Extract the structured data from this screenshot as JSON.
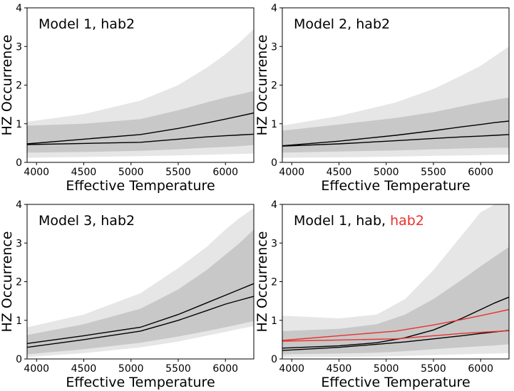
{
  "colors": {
    "light_band": "#e6e6e6",
    "dark_band": "#c8c8c8",
    "line_black": "#000000",
    "line_red": "#e8322d"
  },
  "chart_data": [
    {
      "type": "area",
      "panel": "top-left",
      "title": "Model 1, hab2",
      "title_parts": [
        {
          "text": "Model 1, hab2",
          "color": "#000000"
        }
      ],
      "xlabel": "Effective Temperature",
      "ylabel": "HZ Occurrence",
      "xlim": [
        3900,
        6300
      ],
      "ylim": [
        0,
        4
      ],
      "xticks": [
        4000,
        4500,
        5000,
        5500,
        6000
      ],
      "yticks": [
        0,
        1,
        2,
        3,
        4
      ],
      "bands": [
        {
          "name": "outer",
          "color": "#e6e6e6",
          "x": [
            3900,
            4500,
            5100,
            5500,
            5800,
            6000,
            6150,
            6300
          ],
          "upper": [
            1.05,
            1.25,
            1.6,
            2.0,
            2.45,
            2.8,
            3.1,
            3.45
          ],
          "lower": [
            0.12,
            0.14,
            0.16,
            0.18,
            0.2,
            0.21,
            0.22,
            0.23
          ]
        },
        {
          "name": "inner",
          "color": "#c8c8c8",
          "x": [
            3900,
            4500,
            5100,
            5500,
            5800,
            6000,
            6150,
            6300
          ],
          "upper": [
            0.95,
            1.0,
            1.12,
            1.35,
            1.55,
            1.68,
            1.76,
            1.85
          ],
          "lower": [
            0.25,
            0.27,
            0.3,
            0.34,
            0.38,
            0.4,
            0.42,
            0.45
          ]
        }
      ],
      "series": [
        {
          "name": "model",
          "color": "#000000",
          "x": [
            3900,
            4500,
            5100,
            5500,
            5800,
            6000,
            6150,
            6300
          ],
          "values": [
            0.48,
            0.6,
            0.72,
            0.88,
            1.02,
            1.12,
            1.2,
            1.28
          ]
        },
        {
          "name": "model-2",
          "color": "#000000",
          "x": [
            3900,
            4500,
            5100,
            5500,
            5800,
            6000,
            6150,
            6300
          ],
          "values": [
            0.46,
            0.49,
            0.52,
            0.6,
            0.66,
            0.69,
            0.71,
            0.73
          ]
        }
      ]
    },
    {
      "type": "area",
      "panel": "top-right",
      "title": "Model 2, hab2",
      "title_parts": [
        {
          "text": "Model 2, hab2",
          "color": "#000000"
        }
      ],
      "xlabel": "Effective Temperature",
      "ylabel": "HZ Occurrence",
      "xlim": [
        3900,
        6300
      ],
      "ylim": [
        0,
        4
      ],
      "xticks": [
        4000,
        4500,
        5000,
        5500,
        6000
      ],
      "yticks": [
        0,
        1,
        2,
        3,
        4
      ],
      "bands": [
        {
          "name": "outer",
          "color": "#e6e6e6",
          "x": [
            3900,
            4500,
            5100,
            5500,
            5800,
            6000,
            6150,
            6300
          ],
          "upper": [
            0.95,
            1.2,
            1.55,
            1.9,
            2.25,
            2.5,
            2.75,
            3.0
          ],
          "lower": [
            0.12,
            0.13,
            0.15,
            0.17,
            0.18,
            0.19,
            0.2,
            0.2
          ]
        },
        {
          "name": "inner",
          "color": "#c8c8c8",
          "x": [
            3900,
            4500,
            5100,
            5500,
            5800,
            6000,
            6150,
            6300
          ],
          "upper": [
            0.82,
            0.98,
            1.15,
            1.3,
            1.45,
            1.55,
            1.62,
            1.68
          ],
          "lower": [
            0.25,
            0.28,
            0.31,
            0.34,
            0.36,
            0.37,
            0.38,
            0.38
          ]
        }
      ],
      "series": [
        {
          "name": "model",
          "color": "#000000",
          "x": [
            3900,
            4500,
            5100,
            5500,
            5800,
            6000,
            6150,
            6300
          ],
          "values": [
            0.43,
            0.55,
            0.7,
            0.82,
            0.92,
            0.98,
            1.03,
            1.07
          ]
        },
        {
          "name": "model-2",
          "color": "#000000",
          "x": [
            3900,
            4500,
            5100,
            5500,
            5800,
            6000,
            6150,
            6300
          ],
          "values": [
            0.42,
            0.48,
            0.56,
            0.62,
            0.66,
            0.68,
            0.7,
            0.72
          ]
        }
      ]
    },
    {
      "type": "area",
      "panel": "bottom-left",
      "title": "Model 3, hab2",
      "title_parts": [
        {
          "text": "Model 3, hab2",
          "color": "#000000"
        }
      ],
      "xlabel": "Effective Temperature",
      "ylabel": "HZ Occurrence",
      "xlim": [
        3900,
        6300
      ],
      "ylim": [
        0,
        4
      ],
      "xticks": [
        4000,
        4500,
        5000,
        5500,
        6000
      ],
      "yticks": [
        0,
        1,
        2,
        3,
        4
      ],
      "bands": [
        {
          "name": "outer",
          "color": "#e6e6e6",
          "x": [
            3900,
            4500,
            5100,
            5500,
            5800,
            6000,
            6150,
            6300
          ],
          "upper": [
            0.82,
            1.15,
            1.7,
            2.35,
            2.9,
            3.35,
            3.65,
            3.9
          ],
          "lower": [
            0.05,
            0.15,
            0.3,
            0.45,
            0.6,
            0.7,
            0.78,
            0.85
          ]
        },
        {
          "name": "inner",
          "color": "#c8c8c8",
          "x": [
            3900,
            4500,
            5100,
            5500,
            5800,
            6000,
            6150,
            6300
          ],
          "upper": [
            0.62,
            0.9,
            1.3,
            1.8,
            2.3,
            2.7,
            3.0,
            3.35
          ],
          "lower": [
            0.12,
            0.25,
            0.42,
            0.58,
            0.72,
            0.82,
            0.9,
            0.98
          ]
        }
      ],
      "series": [
        {
          "name": "model",
          "color": "#000000",
          "x": [
            3900,
            4500,
            5100,
            5500,
            5800,
            6000,
            6150,
            6300
          ],
          "values": [
            0.4,
            0.6,
            0.82,
            1.15,
            1.45,
            1.65,
            1.8,
            1.95
          ]
        },
        {
          "name": "model-2",
          "color": "#000000",
          "x": [
            3900,
            4500,
            5100,
            5500,
            5800,
            6000,
            6150,
            6300
          ],
          "values": [
            0.3,
            0.5,
            0.72,
            1.0,
            1.25,
            1.42,
            1.52,
            1.62
          ]
        }
      ]
    },
    {
      "type": "area",
      "panel": "bottom-right",
      "title": "Model 1, hab, hab2",
      "title_parts": [
        {
          "text": "Model 1, hab, ",
          "color": "#000000"
        },
        {
          "text": "hab2",
          "color": "#e8322d"
        }
      ],
      "xlabel": "Effective Temperature",
      "ylabel": "HZ Occurrence",
      "xlim": [
        3900,
        6300
      ],
      "ylim": [
        0,
        4
      ],
      "xticks": [
        4000,
        4500,
        5000,
        5500,
        6000
      ],
      "yticks": [
        0,
        1,
        2,
        3,
        4
      ],
      "bands": [
        {
          "name": "outer",
          "color": "#e6e6e6",
          "x": [
            3900,
            4500,
            4900,
            5200,
            5500,
            5800,
            6000,
            6150,
            6300
          ],
          "upper": [
            1.12,
            1.05,
            1.15,
            1.55,
            2.3,
            3.2,
            3.8,
            4.0,
            4.0
          ],
          "lower": [
            0.04,
            0.05,
            0.06,
            0.08,
            0.1,
            0.12,
            0.13,
            0.14,
            0.15
          ]
        },
        {
          "name": "inner",
          "color": "#c8c8c8",
          "x": [
            3900,
            4500,
            4900,
            5200,
            5500,
            5800,
            6000,
            6150,
            6300
          ],
          "upper": [
            0.72,
            0.78,
            0.9,
            1.15,
            1.55,
            2.05,
            2.4,
            2.65,
            2.9
          ],
          "lower": [
            0.12,
            0.14,
            0.16,
            0.2,
            0.25,
            0.3,
            0.33,
            0.35,
            0.38
          ]
        }
      ],
      "series": [
        {
          "name": "hab",
          "color": "#000000",
          "x": [
            3900,
            4500,
            4900,
            5200,
            5500,
            5800,
            6000,
            6150,
            6300
          ],
          "values": [
            0.28,
            0.34,
            0.42,
            0.55,
            0.75,
            1.05,
            1.28,
            1.45,
            1.6
          ]
        },
        {
          "name": "hab-2",
          "color": "#000000",
          "x": [
            3900,
            4500,
            4900,
            5200,
            5500,
            5800,
            6000,
            6150,
            6300
          ],
          "values": [
            0.22,
            0.3,
            0.38,
            0.44,
            0.52,
            0.6,
            0.66,
            0.7,
            0.74
          ]
        },
        {
          "name": "hab2",
          "color": "#e8322d",
          "x": [
            3900,
            4500,
            5100,
            5500,
            5800,
            6000,
            6150,
            6300
          ],
          "values": [
            0.48,
            0.6,
            0.72,
            0.88,
            1.02,
            1.12,
            1.2,
            1.28
          ]
        },
        {
          "name": "hab2-2",
          "color": "#e8322d",
          "x": [
            3900,
            4500,
            5100,
            5500,
            5800,
            6000,
            6150,
            6300
          ],
          "values": [
            0.46,
            0.49,
            0.52,
            0.6,
            0.66,
            0.69,
            0.71,
            0.73
          ]
        }
      ]
    }
  ]
}
